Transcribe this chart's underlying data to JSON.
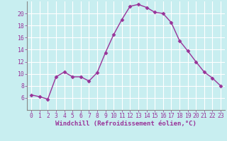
{
  "x": [
    0,
    1,
    2,
    3,
    4,
    5,
    6,
    7,
    8,
    9,
    10,
    11,
    12,
    13,
    14,
    15,
    16,
    17,
    18,
    19,
    20,
    21,
    22,
    23
  ],
  "y": [
    6.5,
    6.2,
    5.8,
    9.5,
    10.3,
    9.5,
    9.5,
    8.8,
    10.2,
    13.5,
    16.5,
    19.0,
    21.2,
    21.5,
    21.0,
    20.2,
    20.0,
    18.5,
    15.5,
    13.8,
    12.0,
    10.3,
    9.3,
    8.0
  ],
  "line_color": "#993399",
  "marker": "D",
  "marker_size": 2.5,
  "bg_color": "#c8eef0",
  "grid_color": "#ffffff",
  "xlabel": "Windchill (Refroidissement éolien,°C)",
  "ylim": [
    4,
    22
  ],
  "xlim": [
    -0.5,
    23.5
  ],
  "yticks": [
    6,
    8,
    10,
    12,
    14,
    16,
    18,
    20
  ],
  "xticks": [
    0,
    1,
    2,
    3,
    4,
    5,
    6,
    7,
    8,
    9,
    10,
    11,
    12,
    13,
    14,
    15,
    16,
    17,
    18,
    19,
    20,
    21,
    22,
    23
  ],
  "xlabel_color": "#993399",
  "tick_color": "#993399",
  "spine_color": "#888888",
  "font_family": "monospace",
  "tick_fontsize": 5.8,
  "xlabel_fontsize": 6.5,
  "linewidth": 1.0
}
